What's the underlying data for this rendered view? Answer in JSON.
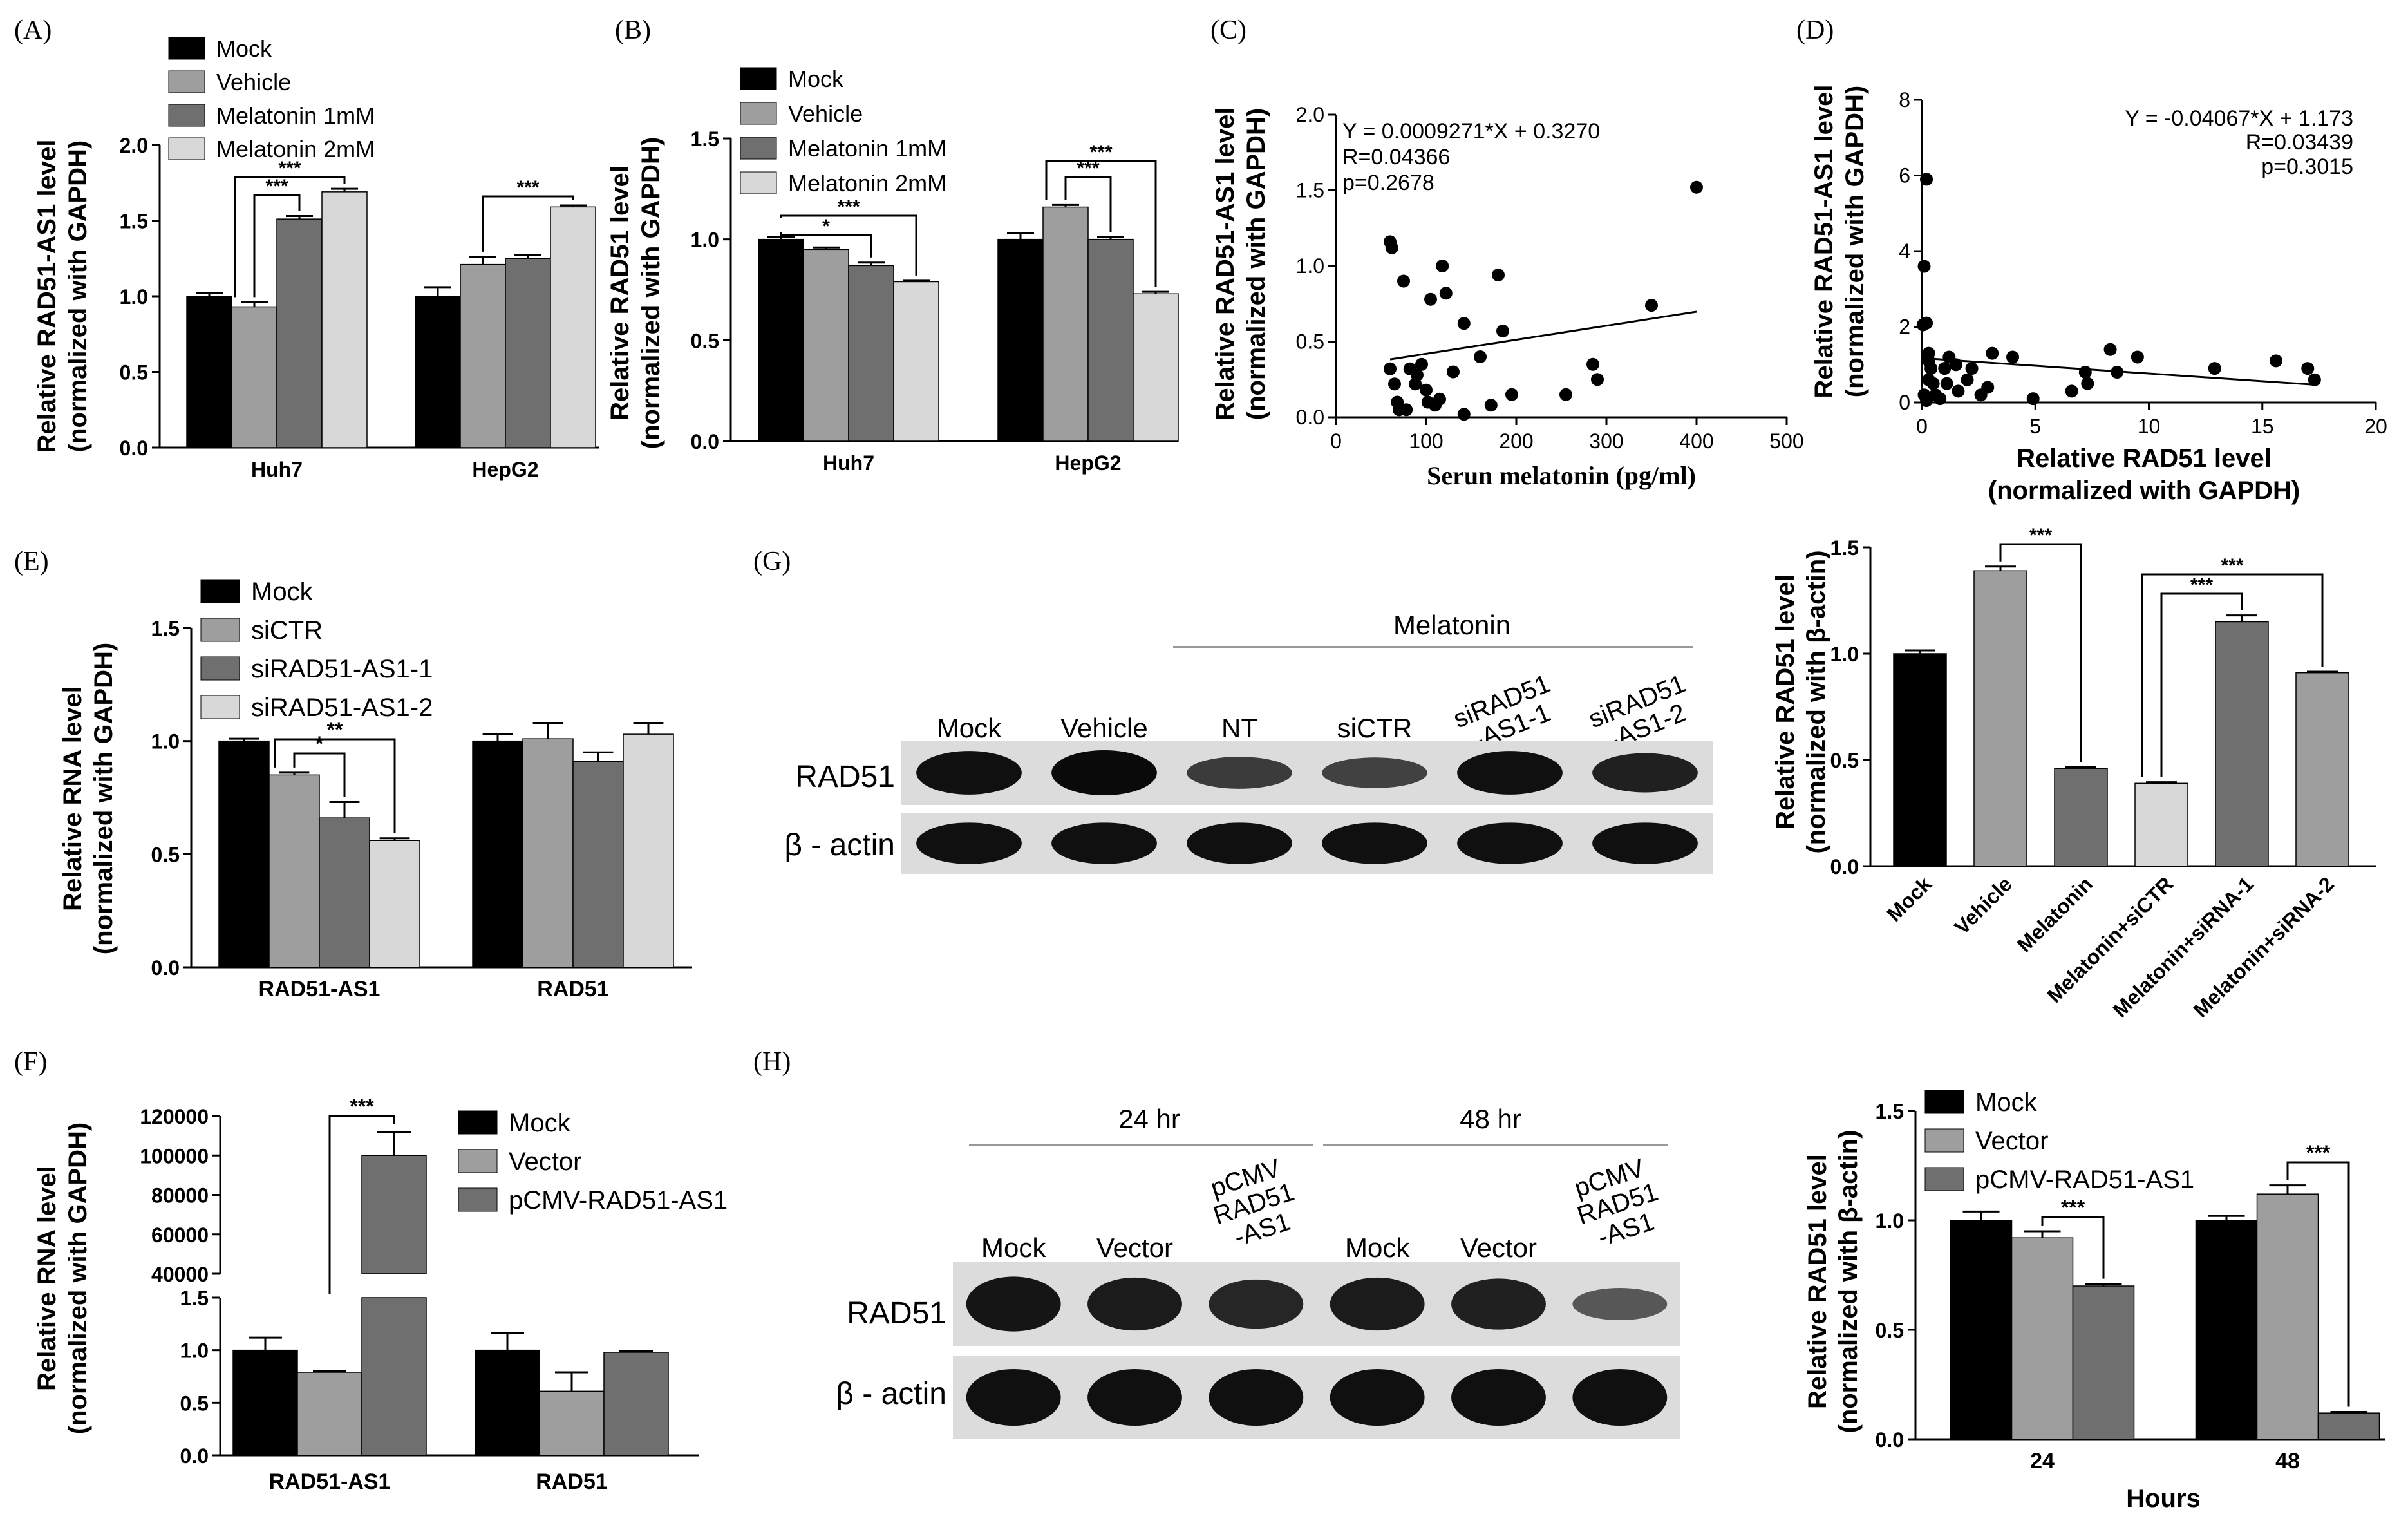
{
  "panels": {
    "A": {
      "label": "(A)",
      "chart_data": {
        "type": "bar",
        "ylabel": [
          "Relative RAD51-AS1 level",
          "(normalized with GAPDH)"
        ],
        "ylim": [
          0,
          2.0
        ],
        "ticks": [
          "0.0",
          "0.5",
          "1.0",
          "1.5",
          "2.0"
        ],
        "categories": [
          "Huh7",
          "HepG2"
        ],
        "series": [
          {
            "name": "Mock",
            "values": [
              1.0,
              1.0
            ],
            "err": [
              0.02,
              0.06
            ],
            "color": "#000000"
          },
          {
            "name": "Vehicle",
            "values": [
              0.93,
              1.21
            ],
            "err": [
              0.03,
              0.05
            ],
            "color": "#9e9e9e"
          },
          {
            "name": "Melatonin 1mM",
            "values": [
              1.51,
              1.25
            ],
            "err": [
              0.02,
              0.02
            ],
            "color": "#6f6f6f"
          },
          {
            "name": "Melatonin 2mM",
            "values": [
              1.69,
              1.59
            ],
            "err": [
              0.02,
              0.01
            ],
            "color": "#d8d8d8"
          }
        ],
        "annotations": [
          "***",
          "***",
          "***"
        ],
        "legend_position": "top-left"
      }
    },
    "B": {
      "label": "(B)",
      "chart_data": {
        "type": "bar",
        "ylabel": [
          "Relative RAD51 level",
          "(normalized with GAPDH)"
        ],
        "ylim": [
          0,
          1.5
        ],
        "ticks": [
          "0.0",
          "0.5",
          "1.0",
          "1.5"
        ],
        "categories": [
          "Huh7",
          "HepG2"
        ],
        "series": [
          {
            "name": "Mock",
            "values": [
              1.0,
              1.0
            ],
            "err": [
              0.01,
              0.03
            ],
            "color": "#000000"
          },
          {
            "name": "Vehicle",
            "values": [
              0.95,
              1.16
            ],
            "err": [
              0.01,
              0.01
            ],
            "color": "#9e9e9e"
          },
          {
            "name": "Melatonin 1mM",
            "values": [
              0.87,
              1.0
            ],
            "err": [
              0.015,
              0.01
            ],
            "color": "#6f6f6f"
          },
          {
            "name": "Melatonin 2mM",
            "values": [
              0.79,
              0.73
            ],
            "err": [
              0.005,
              0.01
            ],
            "color": "#d8d8d8"
          }
        ],
        "annotations": [
          "*",
          "***",
          "***",
          "***"
        ],
        "legend_position": "top-left"
      }
    },
    "C": {
      "label": "(C)",
      "chart_data": {
        "type": "scatter",
        "xlabel": "Serun melatonin (pg/ml)",
        "ylabel": [
          "Relative RAD51-AS1 level",
          "(normalized with GAPDH)"
        ],
        "xlim": [
          0,
          500
        ],
        "ylim": [
          0,
          2.0
        ],
        "xticks": [
          "0",
          "100",
          "200",
          "300",
          "400",
          "500"
        ],
        "yticks": [
          "0.0",
          "0.5",
          "1.0",
          "1.5",
          "2.0"
        ],
        "equation": "Y = 0.0009271*X + 0.3270",
        "r": "R=0.04366",
        "p": "p=0.2678",
        "fit": {
          "slope": 0.0009271,
          "intercept": 0.327,
          "x": [
            60,
            400
          ]
        },
        "points": [
          [
            60,
            1.16
          ],
          [
            62,
            1.12
          ],
          [
            70,
            0.05
          ],
          [
            60,
            0.32
          ],
          [
            75,
            0.9
          ],
          [
            82,
            0.32
          ],
          [
            88,
            0.22
          ],
          [
            95,
            0.35
          ],
          [
            100,
            0.18
          ],
          [
            105,
            0.78
          ],
          [
            102,
            0.1
          ],
          [
            115,
            0.12
          ],
          [
            118,
            1.0
          ],
          [
            122,
            0.82
          ],
          [
            130,
            0.3
          ],
          [
            142,
            0.62
          ],
          [
            142,
            0.02
          ],
          [
            160,
            0.4
          ],
          [
            172,
            0.08
          ],
          [
            180,
            0.94
          ],
          [
            185,
            0.57
          ],
          [
            195,
            0.15
          ],
          [
            255,
            0.15
          ],
          [
            285,
            0.35
          ],
          [
            290,
            0.25
          ],
          [
            350,
            0.74
          ],
          [
            400,
            1.52
          ],
          [
            68,
            0.1
          ],
          [
            78,
            0.05
          ],
          [
            90,
            0.28
          ],
          [
            110,
            0.08
          ],
          [
            65,
            0.22
          ]
        ]
      }
    },
    "D": {
      "label": "(D)",
      "chart_data": {
        "type": "scatter",
        "xlabel": [
          "Relative RAD51 level",
          "(normalized with GAPDH)"
        ],
        "ylabel": [
          "Relative RAD51-AS1 level",
          "(normalized with GAPDH)"
        ],
        "xlim": [
          0,
          20
        ],
        "ylim": [
          0,
          8
        ],
        "xticks": [
          "0",
          "5",
          "10",
          "15",
          "20"
        ],
        "yticks": [
          "0",
          "2",
          "4",
          "6",
          "8"
        ],
        "equation": "Y = -0.04067*X + 1.173",
        "r": "R=0.03439",
        "p": "p=0.3015",
        "fit": {
          "slope": -0.04067,
          "intercept": 1.173,
          "x": [
            0,
            17.3
          ]
        },
        "points": [
          [
            0.2,
            5.9
          ],
          [
            0.1,
            3.6
          ],
          [
            0.2,
            2.1
          ],
          [
            0.05,
            2.05
          ],
          [
            0.3,
            1.3
          ],
          [
            0.3,
            1.1
          ],
          [
            0.4,
            0.9
          ],
          [
            0.3,
            0.6
          ],
          [
            0.5,
            0.5
          ],
          [
            0.6,
            0.2
          ],
          [
            0.8,
            0.1
          ],
          [
            1.0,
            0.9
          ],
          [
            1.1,
            0.5
          ],
          [
            1.2,
            1.2
          ],
          [
            1.5,
            1.0
          ],
          [
            1.6,
            0.3
          ],
          [
            2.0,
            0.6
          ],
          [
            2.2,
            0.9
          ],
          [
            2.6,
            0.2
          ],
          [
            2.9,
            0.4
          ],
          [
            3.1,
            1.3
          ],
          [
            4.0,
            1.2
          ],
          [
            4.9,
            0.1
          ],
          [
            6.6,
            0.3
          ],
          [
            7.2,
            0.8
          ],
          [
            7.3,
            0.5
          ],
          [
            8.3,
            1.4
          ],
          [
            8.6,
            0.8
          ],
          [
            9.5,
            1.2
          ],
          [
            12.9,
            0.9
          ],
          [
            15.6,
            1.1
          ],
          [
            17.0,
            0.9
          ],
          [
            17.3,
            0.6
          ],
          [
            0.1,
            0.2
          ],
          [
            0.2,
            0.05
          ]
        ]
      }
    },
    "E": {
      "label": "(E)",
      "chart_data": {
        "type": "bar",
        "ylabel": [
          "Relative RNA level",
          "(normalized with GAPDH)"
        ],
        "ylim": [
          0,
          1.5
        ],
        "ticks": [
          "0.0",
          "0.5",
          "1.0",
          "1.5"
        ],
        "categories": [
          "RAD51-AS1",
          "RAD51"
        ],
        "series": [
          {
            "name": "Mock",
            "values": [
              1.0,
              1.0
            ],
            "err": [
              0.01,
              0.03
            ],
            "color": "#000000"
          },
          {
            "name": "siCTR",
            "values": [
              0.85,
              1.01
            ],
            "err": [
              0.01,
              0.07
            ],
            "color": "#9e9e9e"
          },
          {
            "name": "siRAD51-AS1-1",
            "values": [
              0.66,
              0.91
            ],
            "err": [
              0.07,
              0.04
            ],
            "color": "#6f6f6f"
          },
          {
            "name": "siRAD51-AS1-2",
            "values": [
              0.56,
              1.03
            ],
            "err": [
              0.01,
              0.05
            ],
            "color": "#d8d8d8"
          }
        ],
        "annotations": [
          "*",
          "**"
        ],
        "legend_position": "top-left"
      }
    },
    "F": {
      "label": "(F)",
      "chart_data": {
        "type": "bar",
        "ylabel": [
          "Relative RNA level",
          "(normalized with GAPDH)"
        ],
        "ylim_lower": [
          0,
          1.5
        ],
        "ylim_upper": [
          40000,
          120000
        ],
        "ticks_lower": [
          "0.0",
          "0.5",
          "1.0",
          "1.5"
        ],
        "ticks_upper": [
          "40000",
          "60000",
          "80000",
          "100000",
          "120000"
        ],
        "categories": [
          "RAD51-AS1",
          "RAD51"
        ],
        "series": [
          {
            "name": "Mock",
            "values": [
              1.0,
              1.0
            ],
            "err": [
              0.12,
              0.16
            ],
            "color": "#000000"
          },
          {
            "name": "Vector",
            "values": [
              0.79,
              0.61
            ],
            "err": [
              0.01,
              0.18
            ],
            "color": "#9e9e9e"
          },
          {
            "name": "pCMV-RAD51-AS1",
            "values": [
              100000,
              0.98
            ],
            "err": [
              12000,
              0.01
            ],
            "color": "#6f6f6f"
          }
        ],
        "annotations": [
          "***"
        ],
        "legend_position": "top-right"
      }
    },
    "G": {
      "label": "(G)",
      "blot": {
        "header": "Melatonin",
        "lanes": [
          "Mock",
          "Vehicle",
          "NT",
          "siCTR",
          "siRAD51\n-AS1-1",
          "siRAD51\n-AS1-2"
        ],
        "rows": [
          "RAD51",
          "β - actin"
        ],
        "rad51_intensity": [
          0.95,
          1.0,
          0.55,
          0.5,
          0.95,
          0.8
        ]
      },
      "chart_data": {
        "type": "bar",
        "ylabel": [
          "Relative RAD51 level",
          "(normalized with β-actin)"
        ],
        "ylim": [
          0,
          1.5
        ],
        "ticks": [
          "0.0",
          "0.5",
          "1.0",
          "1.5"
        ],
        "categories": [
          "Mock",
          "Vehicle",
          "Melatonin",
          "Melatonin+siCTR",
          "Melatonin+siRNA-1",
          "Melatonin+siRNA-2"
        ],
        "values": [
          1.0,
          1.39,
          0.46,
          0.39,
          1.15,
          0.91
        ],
        "err": [
          0.015,
          0.02,
          0.005,
          0.005,
          0.03,
          0.005
        ],
        "colors": [
          "#000000",
          "#9e9e9e",
          "#6f6f6f",
          "#d8d8d8",
          "#6f6f6f",
          "#9e9e9e"
        ],
        "annotations": [
          "***",
          "***",
          "***"
        ]
      }
    },
    "H": {
      "label": "(H)",
      "blot": {
        "groups": [
          "24 hr",
          "48 hr"
        ],
        "lanes": [
          "Mock",
          "Vector",
          "pCMV\nRAD51\n-AS1",
          "Mock",
          "Vector",
          "pCMV\nRAD51\n-AS1"
        ],
        "rows": [
          "RAD51",
          "β - actin"
        ],
        "rad51_intensity": [
          0.9,
          0.85,
          0.75,
          0.85,
          0.8,
          0.3
        ]
      },
      "chart_data": {
        "type": "bar",
        "xlabel": "Hours",
        "ylabel": [
          "Relative RAD51 level",
          "(normalized with β-actin)"
        ],
        "ylim": [
          0,
          1.5
        ],
        "ticks": [
          "0.0",
          "0.5",
          "1.0",
          "1.5"
        ],
        "categories": [
          "24",
          "48"
        ],
        "series": [
          {
            "name": "Mock",
            "values": [
              1.0,
              1.0
            ],
            "err": [
              0.04,
              0.02
            ],
            "color": "#000000"
          },
          {
            "name": "Vector",
            "values": [
              0.92,
              1.12
            ],
            "err": [
              0.03,
              0.04
            ],
            "color": "#9e9e9e"
          },
          {
            "name": "pCMV-RAD51-AS1",
            "values": [
              0.7,
              0.12
            ],
            "err": [
              0.01,
              0.005
            ],
            "color": "#6f6f6f"
          }
        ],
        "annotations": [
          "***",
          "***"
        ],
        "legend_position": "top-left"
      }
    }
  }
}
